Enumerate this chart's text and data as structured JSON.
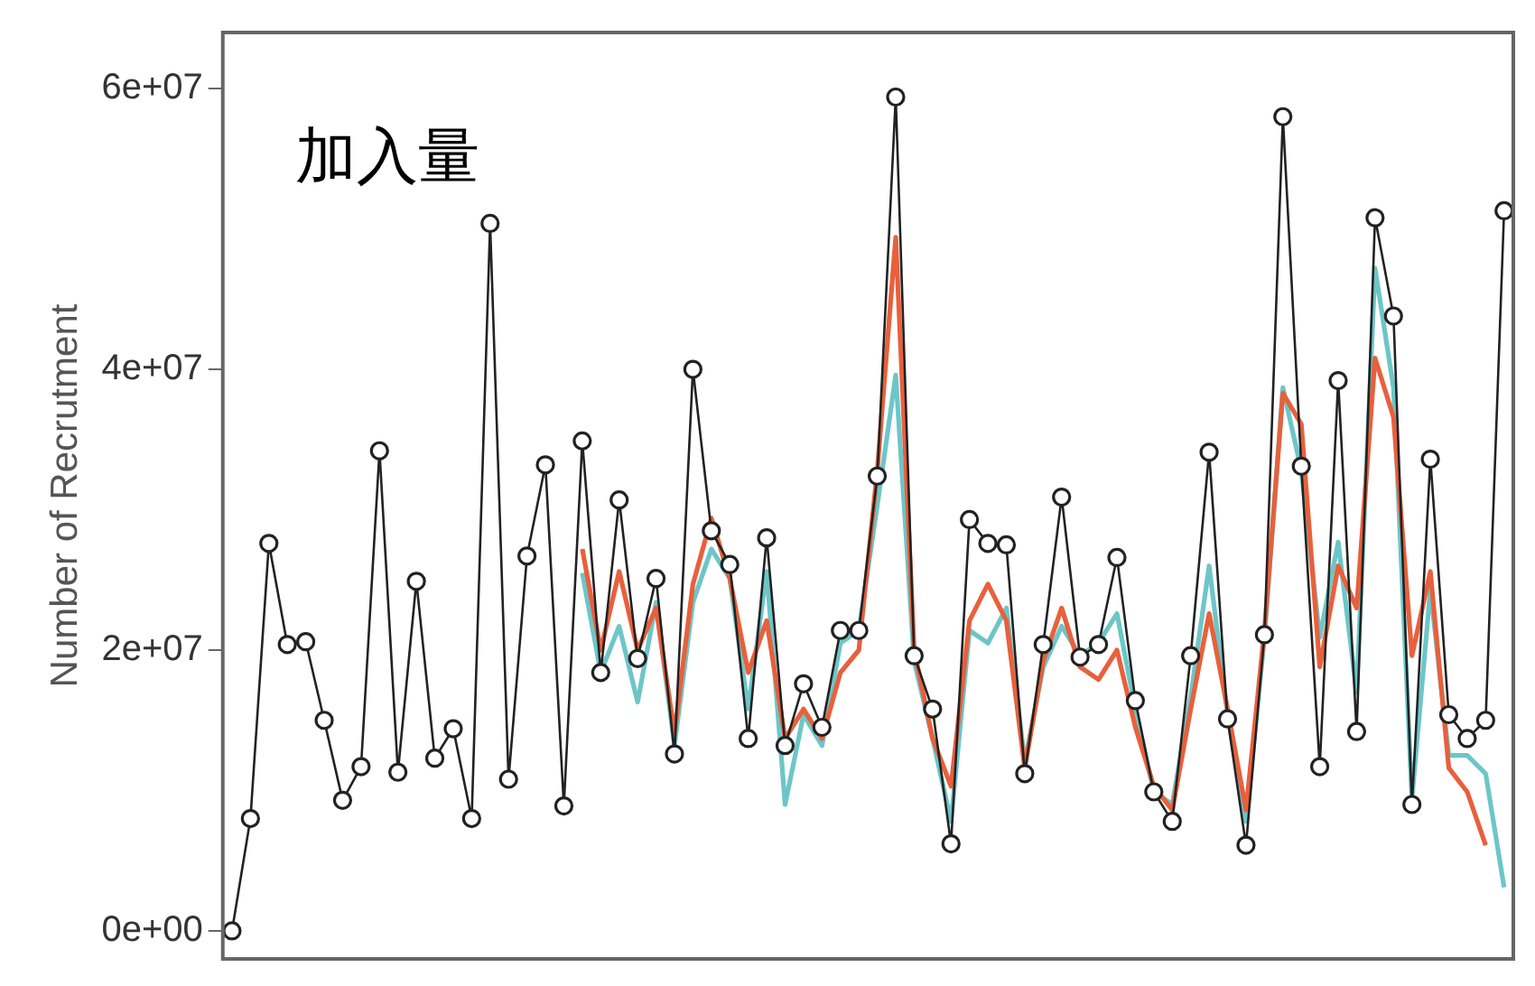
{
  "chart_data": {
    "type": "line",
    "title": "加入量",
    "ylabel": "Number of Recrutment",
    "categories": [
      null,
      null,
      null,
      null,
      null,
      null,
      null,
      null,
      null,
      null,
      null,
      null,
      null,
      null,
      null,
      null,
      null,
      null,
      null,
      null,
      null,
      null,
      null,
      null,
      null,
      null,
      null,
      null,
      null,
      null,
      null,
      null,
      null,
      null,
      null,
      null,
      null,
      null,
      null,
      null,
      null,
      null,
      null,
      null,
      null,
      null,
      null,
      null,
      null,
      null,
      null,
      null,
      null,
      null,
      null,
      null,
      null,
      null,
      null,
      null,
      null,
      null,
      null,
      null,
      null,
      null,
      null,
      null,
      null,
      null
    ],
    "ylim": [
      -2000000,
      64000000
    ],
    "yticks": [
      {
        "value": 0,
        "label": "0e+00"
      },
      {
        "value": 20000000,
        "label": "2e+07"
      },
      {
        "value": 40000000,
        "label": "4e+07"
      },
      {
        "value": 60000000,
        "label": "6e+07"
      }
    ],
    "series": [
      {
        "color": "#222222",
        "marker": "circle",
        "values": [
          0,
          8000000.0,
          27600000.0,
          20400000.0,
          20600000.0,
          15000000.0,
          9300000.0,
          11700000.0,
          34200000.0,
          11300000.0,
          24900000.0,
          12300000.0,
          14400000.0,
          8000000.0,
          50400000.0,
          10800000.0,
          26700000.0,
          33200000.0,
          8900000.0,
          34900000.0,
          18400000.0,
          30700000.0,
          19400000.0,
          25100000.0,
          12600000.0,
          40000000.0,
          28500000.0,
          26100000.0,
          13700000.0,
          28000000.0,
          13200000.0,
          17600000.0,
          14500000.0,
          21400000.0,
          21400000.0,
          32400000.0,
          59400000.0,
          19600000.0,
          15800000.0,
          6200000.0,
          29300000.0,
          27600000.0,
          27500000.0,
          11200000.0,
          20400000.0,
          30900000.0,
          19500000.0,
          20400000.0,
          26600000.0,
          16400000.0,
          9900000.0,
          7800000.0,
          19600000.0,
          34100000.0,
          15100000.0,
          6100000.0,
          21100000.0,
          58000000.0,
          33100000.0,
          11700000.0,
          39200000.0,
          14200000.0,
          50800000.0,
          43800000.0,
          9000000.0,
          33600000.0,
          15400000.0,
          13700000.0,
          15000000.0,
          51300000.0
        ]
      },
      {
        "color": "#e8603c",
        "values": [
          null,
          null,
          null,
          null,
          null,
          null,
          null,
          null,
          null,
          null,
          null,
          null,
          null,
          null,
          null,
          null,
          null,
          null,
          null,
          27200000.0,
          20000000.0,
          25600000.0,
          20000000.0,
          23000000.0,
          14100000.0,
          24700000.0,
          29400000.0,
          25100000.0,
          18400000.0,
          22100000.0,
          13700000.0,
          15800000.0,
          13700000.0,
          18400000.0,
          20000000.0,
          32800000.0,
          49400000.0,
          20000000.0,
          13700000.0,
          10300000.0,
          22100000.0,
          24700000.0,
          22100000.0,
          11600000.0,
          19200000.0,
          23000000.0,
          18800000.0,
          17900000.0,
          20000000.0,
          14500000.0,
          10300000.0,
          8600000.0,
          15800000.0,
          22600000.0,
          15800000.0,
          8600000.0,
          21400000.0,
          38300000.0,
          36100000.0,
          18800000.0,
          26000000.0,
          23000000.0,
          40800000.0,
          36600000.0,
          19600000.0,
          25600000.0,
          11600000.0,
          9900000.0,
          6100000.0,
          null
        ]
      },
      {
        "color": "#6cc6c8",
        "values": [
          null,
          null,
          null,
          null,
          null,
          null,
          null,
          null,
          null,
          null,
          null,
          null,
          null,
          null,
          null,
          null,
          null,
          null,
          null,
          25500000.0,
          18400000.0,
          21700000.0,
          16300000.0,
          23400000.0,
          13200000.0,
          23400000.0,
          27200000.0,
          25100000.0,
          15800000.0,
          25600000.0,
          9000000.0,
          15400000.0,
          13200000.0,
          20500000.0,
          21400000.0,
          30300000.0,
          39600000.0,
          19200000.0,
          13700000.0,
          7800000.0,
          21400000.0,
          20500000.0,
          23000000.0,
          12000000.0,
          18800000.0,
          21700000.0,
          19600000.0,
          20500000.0,
          22600000.0,
          15800000.0,
          9900000.0,
          9000000.0,
          16700000.0,
          26000000.0,
          15400000.0,
          7800000.0,
          20900000.0,
          38700000.0,
          32800000.0,
          20900000.0,
          27700000.0,
          17000000.0,
          47200000.0,
          38700000.0,
          9400000.0,
          24300000.0,
          12500000.0,
          12500000.0,
          11200000.0,
          3100000.0
        ]
      }
    ]
  }
}
